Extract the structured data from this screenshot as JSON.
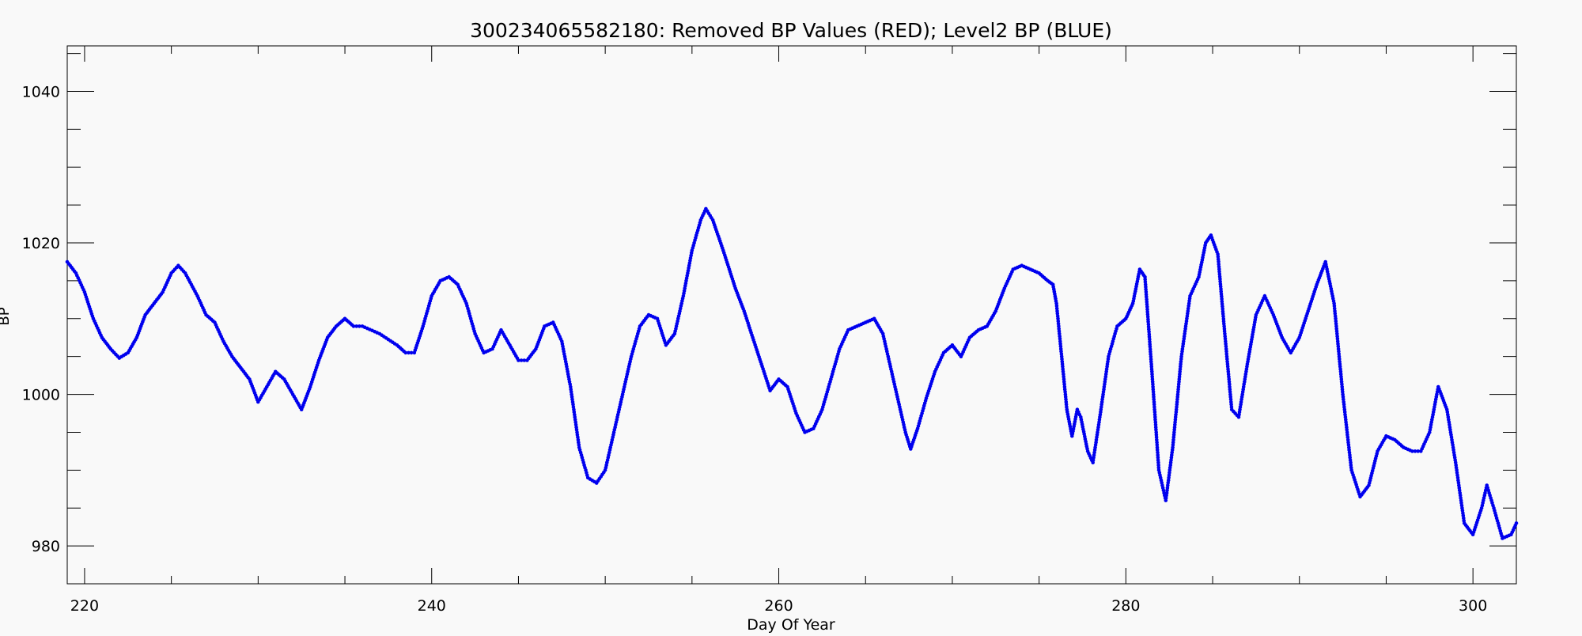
{
  "chart_data": {
    "type": "scatter",
    "title": "300234065582180: Removed BP Values (RED); Level2 BP (BLUE)",
    "xlabel": "Day Of Year",
    "ylabel": "BP",
    "xlim": [
      219.0,
      302.5
    ],
    "ylim": [
      975,
      1046
    ],
    "x_ticks": [
      220,
      240,
      260,
      280,
      300
    ],
    "y_ticks": [
      980,
      1000,
      1020,
      1040
    ],
    "x_minor_step": 5,
    "y_minor_step": 5,
    "grid": false,
    "series": [
      {
        "name": "Level2 BP",
        "color": "#0000ee",
        "knots": [
          [
            219.0,
            1017.5
          ],
          [
            219.5,
            1016.0
          ],
          [
            220.0,
            1013.5
          ],
          [
            220.5,
            1010.0
          ],
          [
            221.0,
            1007.5
          ],
          [
            221.5,
            1006.0
          ],
          [
            222.0,
            1004.8
          ],
          [
            222.5,
            1005.5
          ],
          [
            223.0,
            1007.5
          ],
          [
            223.5,
            1010.5
          ],
          [
            224.0,
            1012.0
          ],
          [
            224.5,
            1013.5
          ],
          [
            225.0,
            1016.0
          ],
          [
            225.4,
            1017.0
          ],
          [
            225.8,
            1016.0
          ],
          [
            226.5,
            1013.0
          ],
          [
            227.0,
            1010.5
          ],
          [
            227.5,
            1009.5
          ],
          [
            228.0,
            1007.0
          ],
          [
            228.5,
            1005.0
          ],
          [
            229.0,
            1003.5
          ],
          [
            229.5,
            1002.0
          ],
          [
            230.0,
            999.0
          ],
          [
            230.5,
            1001.0
          ],
          [
            231.0,
            1003.0
          ],
          [
            231.5,
            1002.0
          ],
          [
            232.0,
            1000.0
          ],
          [
            232.5,
            998.0
          ],
          [
            233.0,
            1001.0
          ],
          [
            233.5,
            1004.5
          ],
          [
            234.0,
            1007.5
          ],
          [
            234.5,
            1009.0
          ],
          [
            235.0,
            1010.0
          ],
          [
            235.5,
            1009.0
          ],
          [
            236.0,
            1009.0
          ],
          [
            237.0,
            1008.0
          ],
          [
            238.0,
            1006.5
          ],
          [
            238.5,
            1005.5
          ],
          [
            239.0,
            1005.5
          ],
          [
            239.5,
            1009.0
          ],
          [
            240.0,
            1013.0
          ],
          [
            240.5,
            1015.0
          ],
          [
            241.0,
            1015.5
          ],
          [
            241.5,
            1014.5
          ],
          [
            242.0,
            1012.0
          ],
          [
            242.5,
            1008.0
          ],
          [
            243.0,
            1005.5
          ],
          [
            243.5,
            1006.0
          ],
          [
            244.0,
            1008.5
          ],
          [
            244.5,
            1006.5
          ],
          [
            245.0,
            1004.5
          ],
          [
            245.5,
            1004.5
          ],
          [
            246.0,
            1006.0
          ],
          [
            246.5,
            1009.0
          ],
          [
            247.0,
            1009.5
          ],
          [
            247.5,
            1007.0
          ],
          [
            248.0,
            1001.0
          ],
          [
            248.5,
            993.0
          ],
          [
            249.0,
            989.0
          ],
          [
            249.5,
            988.3
          ],
          [
            250.0,
            990.0
          ],
          [
            250.5,
            995.0
          ],
          [
            251.0,
            1000.0
          ],
          [
            251.5,
            1005.0
          ],
          [
            252.0,
            1009.0
          ],
          [
            252.5,
            1010.5
          ],
          [
            253.0,
            1010.0
          ],
          [
            253.5,
            1006.5
          ],
          [
            254.0,
            1008.0
          ],
          [
            254.5,
            1013.0
          ],
          [
            255.0,
            1019.0
          ],
          [
            255.5,
            1023.0
          ],
          [
            255.8,
            1024.5
          ],
          [
            256.2,
            1023.0
          ],
          [
            256.8,
            1019.0
          ],
          [
            257.5,
            1014.0
          ],
          [
            258.0,
            1011.0
          ],
          [
            258.5,
            1007.5
          ],
          [
            259.0,
            1004.0
          ],
          [
            259.5,
            1000.5
          ],
          [
            260.0,
            1002.0
          ],
          [
            260.5,
            1001.0
          ],
          [
            261.0,
            997.5
          ],
          [
            261.5,
            995.0
          ],
          [
            262.0,
            995.5
          ],
          [
            262.5,
            998.0
          ],
          [
            263.0,
            1002.0
          ],
          [
            263.5,
            1006.0
          ],
          [
            264.0,
            1008.5
          ],
          [
            264.5,
            1009.0
          ],
          [
            265.0,
            1009.5
          ],
          [
            265.5,
            1010.0
          ],
          [
            266.0,
            1008.0
          ],
          [
            266.5,
            1003.0
          ],
          [
            267.0,
            998.0
          ],
          [
            267.3,
            995.0
          ],
          [
            267.6,
            992.8
          ],
          [
            268.0,
            995.5
          ],
          [
            268.5,
            999.5
          ],
          [
            269.0,
            1003.0
          ],
          [
            269.5,
            1005.5
          ],
          [
            270.0,
            1006.5
          ],
          [
            270.5,
            1005.0
          ],
          [
            271.0,
            1007.5
          ],
          [
            271.5,
            1008.5
          ],
          [
            272.0,
            1009.0
          ],
          [
            272.5,
            1011.0
          ],
          [
            273.0,
            1014.0
          ],
          [
            273.5,
            1016.5
          ],
          [
            274.0,
            1017.0
          ],
          [
            274.5,
            1016.5
          ],
          [
            275.0,
            1016.0
          ],
          [
            275.5,
            1015.0
          ],
          [
            275.8,
            1014.5
          ],
          [
            276.0,
            1012.0
          ],
          [
            276.3,
            1005.0
          ],
          [
            276.6,
            998.0
          ],
          [
            276.9,
            994.5
          ],
          [
            277.2,
            998.0
          ],
          [
            277.4,
            997.0
          ],
          [
            277.8,
            992.5
          ],
          [
            278.1,
            991.0
          ],
          [
            278.5,
            997.0
          ],
          [
            279.0,
            1005.0
          ],
          [
            279.5,
            1009.0
          ],
          [
            280.0,
            1010.0
          ],
          [
            280.4,
            1012.0
          ],
          [
            280.8,
            1016.5
          ],
          [
            281.1,
            1015.5
          ],
          [
            281.5,
            1003.0
          ],
          [
            281.9,
            990.0
          ],
          [
            282.3,
            986.0
          ],
          [
            282.7,
            993.0
          ],
          [
            283.2,
            1005.0
          ],
          [
            283.7,
            1013.0
          ],
          [
            284.2,
            1015.5
          ],
          [
            284.6,
            1020.0
          ],
          [
            284.9,
            1021.0
          ],
          [
            285.3,
            1018.5
          ],
          [
            285.7,
            1008.0
          ],
          [
            286.1,
            998.0
          ],
          [
            286.5,
            997.0
          ],
          [
            287.0,
            1004.0
          ],
          [
            287.5,
            1010.5
          ],
          [
            288.0,
            1013.0
          ],
          [
            288.5,
            1010.5
          ],
          [
            289.0,
            1007.5
          ],
          [
            289.5,
            1005.5
          ],
          [
            290.0,
            1007.5
          ],
          [
            290.5,
            1011.0
          ],
          [
            291.0,
            1014.5
          ],
          [
            291.5,
            1017.5
          ],
          [
            292.0,
            1012.0
          ],
          [
            292.5,
            1000.0
          ],
          [
            293.0,
            990.0
          ],
          [
            293.5,
            986.5
          ],
          [
            294.0,
            988.0
          ],
          [
            294.5,
            992.5
          ],
          [
            295.0,
            994.5
          ],
          [
            295.5,
            994.0
          ],
          [
            296.0,
            993.0
          ],
          [
            296.5,
            992.5
          ],
          [
            297.0,
            992.5
          ],
          [
            297.5,
            995.0
          ],
          [
            298.0,
            1001.0
          ],
          [
            298.5,
            998.0
          ],
          [
            299.0,
            991.0
          ],
          [
            299.5,
            983.0
          ],
          [
            300.0,
            981.5
          ],
          [
            300.5,
            985.0
          ],
          [
            300.8,
            988.0
          ],
          [
            301.2,
            985.0
          ],
          [
            301.7,
            981.0
          ],
          [
            302.2,
            981.5
          ],
          [
            302.5,
            983.0
          ],
          [
            302.5,
            983.0
          ]
        ]
      }
    ]
  }
}
